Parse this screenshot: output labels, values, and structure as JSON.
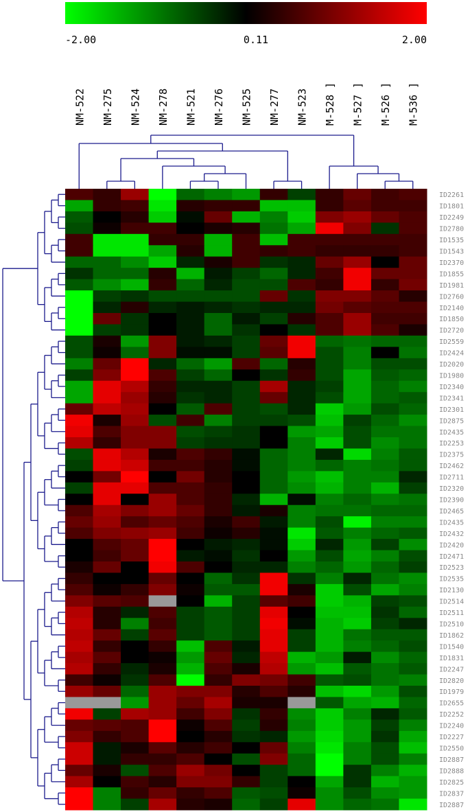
{
  "chart_data": {
    "type": "heatmap",
    "categories": [
      "NM-522",
      "NM-275",
      "NM-524",
      "NM-278",
      "NM-521",
      "NM-276",
      "NM-525",
      "NM-277",
      "NM-523",
      "M-528 ]",
      "M-527 ]",
      "M-526 ]",
      "M-536 ]"
    ],
    "rows": [
      "ID2261",
      "ID1801",
      "ID2249",
      "ID2780",
      "ID1535",
      "ID1543",
      "ID2370",
      "ID1855",
      "ID1981",
      "ID2760",
      "ID2140",
      "ID1850",
      "ID2720",
      "ID2559",
      "ID2424",
      "ID2020",
      "ID1980",
      "ID2340",
      "ID2341",
      "ID2301",
      "ID2875",
      "ID2435",
      "ID2253",
      "ID2375",
      "ID2462",
      "ID2711",
      "ID2320",
      "ID2390",
      "ID2465",
      "ID2435",
      "ID2432",
      "ID2420",
      "ID2471",
      "ID2523",
      "ID2535",
      "ID2130",
      "ID2514",
      "ID2511",
      "ID2510",
      "ID1862",
      "ID1540",
      "ID1831",
      "ID2247",
      "ID2820",
      "ID1979",
      "ID2655",
      "ID2252",
      "ID2240",
      "ID2227",
      "ID2550",
      "ID2887",
      "ID2888",
      "ID2825",
      "ID2837",
      "ID2887"
    ],
    "z": [
      [
        0.6,
        0.4,
        1.2,
        -2,
        -0.8,
        -1,
        -1.2,
        0.4,
        -0.5,
        0.4,
        0.8,
        0.5,
        0.6
      ],
      [
        -1.3,
        0.4,
        0.5,
        -1.8,
        0.3,
        0.4,
        0.4,
        -1.5,
        -1.5,
        0.4,
        0.7,
        0.5,
        0.5
      ],
      [
        -0.7,
        0,
        0.3,
        -1.6,
        -0.1,
        0.8,
        -1.4,
        -1,
        -1.6,
        1,
        1.2,
        0.8,
        0.6
      ],
      [
        -0.6,
        0.1,
        0.5,
        0.5,
        0,
        0.2,
        0.3,
        -0.9,
        -1.3,
        1.9,
        1,
        -0.4,
        0.6
      ],
      [
        0.5,
        -1.8,
        -1.8,
        0.4,
        0.4,
        -1.4,
        0.5,
        -1.5,
        0.5,
        0.5,
        0.5,
        0.5,
        0.5
      ],
      [
        0.5,
        -1.8,
        -1.8,
        -1.3,
        0.3,
        -1.4,
        0.5,
        0.4,
        0.5,
        0.4,
        0.4,
        0.4,
        0.5
      ],
      [
        -0.8,
        -0.8,
        -1.1,
        -1.6,
        -0.3,
        0.2,
        0.5,
        -0.4,
        -0.3,
        0.8,
        1.2,
        0,
        0.8
      ],
      [
        -0.4,
        -0.8,
        -0.8,
        0.3,
        -1.4,
        -0.2,
        -0.5,
        -0.8,
        -0.3,
        0.5,
        1.9,
        0.8,
        0.8
      ],
      [
        -0.7,
        -1.1,
        -1.4,
        0.4,
        -0.8,
        -0.3,
        -0.6,
        -0.6,
        0.6,
        0.4,
        1.9,
        0.4,
        0.9
      ],
      [
        -2,
        -0.5,
        -0.4,
        -0.6,
        -0.6,
        -0.6,
        -0.6,
        0.8,
        -0.4,
        1,
        1,
        0.7,
        0.3
      ],
      [
        -2,
        -0.3,
        0.3,
        -0.3,
        -0.2,
        -0.3,
        -0.4,
        -0.3,
        -0.3,
        0.9,
        0.7,
        0.6,
        0.6
      ],
      [
        -2,
        0.8,
        -0.4,
        0,
        -0.2,
        -0.8,
        -0.2,
        -0.5,
        0.3,
        0.6,
        1.2,
        0.5,
        0.5
      ],
      [
        -2,
        -0.5,
        -0.4,
        0,
        -0.2,
        -0.8,
        -0.4,
        0,
        -0.4,
        0.6,
        1.2,
        0.6,
        0.2
      ],
      [
        -0.6,
        0.2,
        -1.2,
        1,
        -0.2,
        -0.3,
        -0.5,
        0.8,
        1.9,
        -0.8,
        -0.9,
        -0.8,
        -0.8
      ],
      [
        -0.6,
        0.1,
        -0.8,
        1,
        -0.1,
        -0.1,
        -0.5,
        0.7,
        1.9,
        -0.6,
        -1,
        0,
        -0.9
      ],
      [
        -1,
        0.8,
        2,
        -0.3,
        -0.8,
        -1.2,
        0.6,
        -0.8,
        0.3,
        -0.6,
        -1,
        -0.6,
        -0.6
      ],
      [
        -0.5,
        1,
        2,
        0.6,
        -0.5,
        -0.8,
        0,
        -0.4,
        0.4,
        -0.6,
        -1.3,
        -0.7,
        -0.8
      ],
      [
        -1.3,
        1.8,
        1.4,
        0.4,
        -0.3,
        -0.3,
        -0.5,
        1.3,
        -0.3,
        -0.5,
        -1.3,
        -0.8,
        -1
      ],
      [
        -1.3,
        1.8,
        1.2,
        0.3,
        -0.4,
        -0.3,
        -0.5,
        0.8,
        -0.3,
        -0.6,
        -1.3,
        -0.8,
        -0.7
      ],
      [
        0.8,
        1.5,
        1.3,
        0,
        -0.7,
        0.6,
        -0.5,
        -0.6,
        -0.3,
        -1.6,
        -1.2,
        -0.6,
        -0.8
      ],
      [
        1.9,
        0.2,
        1.2,
        -0.6,
        0.5,
        -1,
        -0.5,
        -0.5,
        -0.6,
        -1.5,
        -0.5,
        -0.8,
        -1.1
      ],
      [
        1.8,
        0.6,
        1,
        1,
        -0.6,
        -0.5,
        -0.4,
        0,
        -1.2,
        -1.3,
        -0.6,
        -0.9,
        -0.9
      ],
      [
        1.4,
        0.4,
        1,
        1,
        -0.5,
        -0.4,
        -0.4,
        0,
        -1,
        -1.6,
        -0.6,
        -1.1,
        -0.9
      ],
      [
        -0.6,
        1.8,
        1.4,
        0.2,
        0.6,
        0.4,
        -0.1,
        -0.8,
        -1,
        -0.3,
        -1.7,
        -1,
        -0.7
      ],
      [
        -0.5,
        1.8,
        1.6,
        0.5,
        0.5,
        0.3,
        -0.1,
        -0.8,
        -1,
        -0.8,
        -1,
        -0.9,
        -0.7
      ],
      [
        0,
        0.9,
        2,
        0,
        0.9,
        0.3,
        0,
        -0.8,
        -1.2,
        -1.5,
        -1,
        -1,
        -0.3
      ],
      [
        -0.5,
        1.8,
        1.8,
        0.6,
        0.6,
        0.4,
        0,
        -0.8,
        -1.1,
        -1.4,
        -1,
        -1.4,
        -0.5
      ],
      [
        0,
        1.8,
        0,
        1.2,
        0.6,
        0.4,
        -0.3,
        -1.4,
        -0.1,
        -1,
        -0.8,
        -1,
        -0.9
      ],
      [
        0.6,
        1.3,
        1,
        1.2,
        0.8,
        0.4,
        -0.2,
        0.2,
        -1,
        -0.9,
        -0.9,
        -0.8,
        -0.8
      ],
      [
        0.8,
        1.2,
        0.6,
        0.8,
        0.6,
        0.2,
        0.5,
        -0.2,
        -1,
        -0.6,
        -1.9,
        -1,
        -1
      ],
      [
        0.6,
        1,
        1.1,
        1.2,
        0.5,
        0.1,
        0.3,
        -0.1,
        -1.8,
        -0.7,
        -1,
        -0.8,
        -0.7
      ],
      [
        0,
        0.6,
        0.8,
        2,
        0,
        -0.2,
        -0.3,
        -0.1,
        -1.6,
        -0.3,
        -1.2,
        -0.5,
        -1.1
      ],
      [
        0,
        0.5,
        0.8,
        2,
        -0.2,
        -0.1,
        -0.4,
        0,
        -1.2,
        -0.6,
        -1.3,
        -1,
        -0.6
      ],
      [
        0.2,
        0.8,
        0,
        1.9,
        0.6,
        0,
        -0.3,
        -0.3,
        -1,
        -0.8,
        -1.2,
        -0.8,
        -0.5
      ],
      [
        0.4,
        0,
        0,
        0.8,
        0,
        -0.8,
        -0.4,
        1.9,
        -0.4,
        -1,
        -0.3,
        -0.9,
        -1.1
      ],
      [
        0.6,
        0.1,
        0.4,
        1,
        0.1,
        -0.7,
        -0.7,
        1.9,
        0.2,
        -1.6,
        -0.6,
        -1.3,
        -1
      ],
      [
        1,
        0.7,
        0.6,
        null,
        0,
        -1.4,
        -0.5,
        0.7,
        0.5,
        -1.6,
        -1.4,
        -0.5,
        -0.6
      ],
      [
        1.4,
        0.3,
        -0.3,
        0.6,
        -0.5,
        -0.7,
        -0.5,
        1.8,
        0,
        -1.5,
        -1.5,
        -0.4,
        -0.8
      ],
      [
        1.5,
        0.3,
        -1,
        0.5,
        -0.5,
        -0.7,
        -0.5,
        1.9,
        -0.1,
        -1.4,
        -1.6,
        -0.5,
        -0.3
      ],
      [
        1.4,
        0.8,
        -0.5,
        0.7,
        -0.5,
        -0.7,
        -0.5,
        1.8,
        -0.5,
        -1.4,
        -0.9,
        -0.7,
        -0.7
      ],
      [
        1.5,
        0.4,
        0,
        0.4,
        -1.5,
        0.6,
        -0.2,
        1.8,
        -0.5,
        -1.4,
        -1,
        -0.8,
        -0.6
      ],
      [
        1.3,
        0.7,
        0,
        0.1,
        -1.2,
        0.8,
        -0.3,
        1.5,
        -1.4,
        -1.2,
        -0.2,
        -1.1,
        -0.8
      ],
      [
        1.4,
        0.4,
        -0.3,
        0.2,
        -1.4,
        0.6,
        0.2,
        1.4,
        -1.2,
        -1.5,
        -0.7,
        -0.9,
        -0.7
      ],
      [
        0.5,
        0.1,
        -0.4,
        0.6,
        -2,
        0.4,
        1,
        0.9,
        0.5,
        -0.7,
        -0.6,
        -0.9,
        -1
      ],
      [
        1.2,
        0.8,
        -0.8,
        1.2,
        1,
        1,
        0.3,
        0.6,
        0.3,
        -1.5,
        -1.7,
        -1.2,
        -0.6
      ],
      [
        null,
        null,
        -1.2,
        1.2,
        0.8,
        1.3,
        0.2,
        0.2,
        null,
        -0.7,
        -1.3,
        -1.4,
        -0.8
      ],
      [
        1.9,
        -0.5,
        1.3,
        1.2,
        0.5,
        1,
        -0.4,
        0.4,
        -1.1,
        -1.6,
        -1,
        -0.3,
        -0.7
      ],
      [
        0.8,
        0.7,
        0.6,
        2,
        0.1,
        0.6,
        -0.5,
        0.3,
        -1,
        -1.6,
        -1.2,
        -0.5,
        -1
      ],
      [
        1,
        0.4,
        0.6,
        2,
        0,
        0.3,
        -0.4,
        -0.3,
        -1.2,
        -1.7,
        -1.2,
        -0.4,
        -1.3
      ],
      [
        1.6,
        -0.2,
        0.2,
        0.7,
        0.3,
        0.5,
        0,
        0.8,
        -1,
        -1.8,
        -1,
        -0.6,
        -1.5
      ],
      [
        1.6,
        -0.2,
        0.4,
        0.4,
        0.6,
        0,
        -0.6,
        1,
        -0.8,
        -2,
        -1,
        -0.6,
        -1
      ],
      [
        0.8,
        0.2,
        -0.6,
        0.6,
        1.2,
        0.9,
        0,
        -0.5,
        -0.8,
        -2,
        -0.4,
        -1,
        -1.4
      ],
      [
        1.3,
        0,
        0.5,
        0.3,
        1,
        1,
        0.4,
        -0.5,
        0,
        -1.3,
        -0.4,
        -1.4,
        -1.2
      ],
      [
        2,
        -1,
        0.4,
        0.8,
        0.4,
        0.6,
        -0.7,
        -0.6,
        0.1,
        -1.1,
        -0.6,
        -1.1,
        -1.2
      ],
      [
        2,
        -1,
        -0.5,
        1.3,
        0.3,
        0.2,
        -0.8,
        -0.5,
        1.8,
        -1.1,
        -0.8,
        -0.9,
        -1.8
      ]
    ],
    "zlim": [
      -2,
      2
    ],
    "colorscale": [
      "#00ff00",
      "#000000",
      "#ff0000"
    ],
    "null_color": "#999999",
    "zticks": [
      {
        "value": -2,
        "label": "-2.00"
      },
      {
        "value": 0.11,
        "label": "0.11"
      },
      {
        "value": 2,
        "label": "2.00"
      }
    ],
    "dendrogram_color": "#1a1a8c"
  }
}
